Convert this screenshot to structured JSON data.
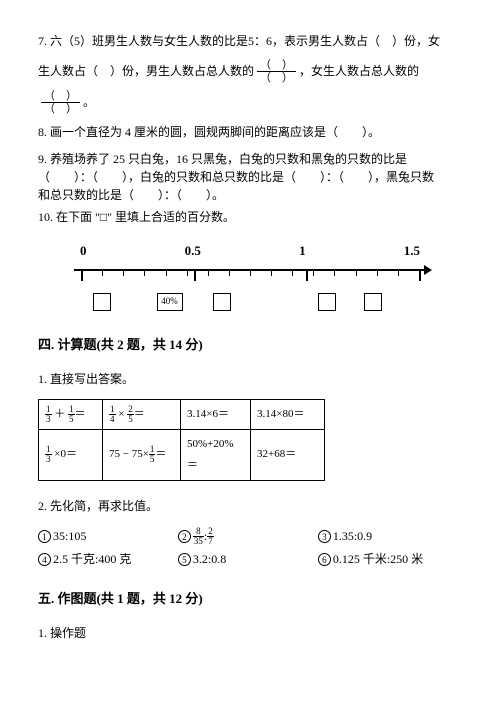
{
  "q7": {
    "prefix": "7. 六（5）班男生人数与女生人数的比是5：6，表示男生人数占（　）份，女",
    "line2a": "生人数占（　）份，男生人数占总人数的",
    "line2b": "，女生人数占总人数的",
    "line3": "。",
    "frac_top": "（　）",
    "frac_bot": "（　）"
  },
  "q8": "8. 画一个直径为 4 厘米的圆，圆规两脚间的距离应该是（　　）。",
  "q9a": "9. 养殖场养了 25 只白兔，16 只黑兔，白兔的只数和黑兔的只数的比是",
  "q9b": "（　　）：（　　），白兔的只数和总只数的比是（　　）：（　　），黑兔只数",
  "q9c": "和总只数的比是（　　）：（　　）。",
  "q10": "10. 在下面 \"□\" 里填上合适的百分数。",
  "numberline": {
    "labels": [
      "0",
      "0.5",
      "1",
      "1.5"
    ],
    "major_ticks_pct": [
      2,
      34,
      66,
      98
    ],
    "minor_ticks_count": 16,
    "boxes": [
      {
        "left_pct": 8,
        "text": ""
      },
      {
        "left_pct": 26,
        "text": "40%"
      },
      {
        "left_pct": 42,
        "text": ""
      },
      {
        "left_pct": 72,
        "text": ""
      },
      {
        "left_pct": 85,
        "text": ""
      }
    ]
  },
  "section4": {
    "title": "四. 计算题(共 2 题，共 14 分)",
    "item1": "1. 直接写出答案。",
    "item2": "2. 先化简，再求比值。"
  },
  "calc_table": {
    "r1": [
      {
        "f1n": "1",
        "f1d": "3",
        "op": "＋",
        "f2n": "1",
        "f2d": "5",
        "eq": "＝"
      },
      {
        "f1n": "1",
        "f1d": "4",
        "op": "×",
        "f2n": "2",
        "f2d": "5",
        "eq": "＝"
      },
      {
        "text": "3.14×6＝"
      },
      {
        "text": "3.14×80＝"
      }
    ],
    "r2": [
      {
        "f1n": "1",
        "f1d": "3",
        "op": "×0＝"
      },
      {
        "text_a": "75 − 75×",
        "fn": "1",
        "fd": "5",
        "eq": "＝"
      },
      {
        "text": "50%+20%＝"
      },
      {
        "text": "32+68＝"
      }
    ],
    "col_widths": [
      "64px",
      "78px",
      "70px",
      "74px"
    ]
  },
  "ratios": [
    {
      "num": "1",
      "text": "35:105"
    },
    {
      "num": "2",
      "pre": "",
      "fn": "8",
      "fd": "35",
      "mid": " : ",
      "f2n": "2",
      "f2d": "7"
    },
    {
      "num": "3",
      "text": "1.35:0.9"
    },
    {
      "num": "4",
      "text": "2.5 千克:400 克"
    },
    {
      "num": "5",
      "text": "3.2:0.8"
    },
    {
      "num": "6",
      "text": "0.125 千米:250 米"
    }
  ],
  "section5": {
    "title": "五. 作图题(共 1 题，共 12 分)",
    "item1": "1. 操作题"
  }
}
